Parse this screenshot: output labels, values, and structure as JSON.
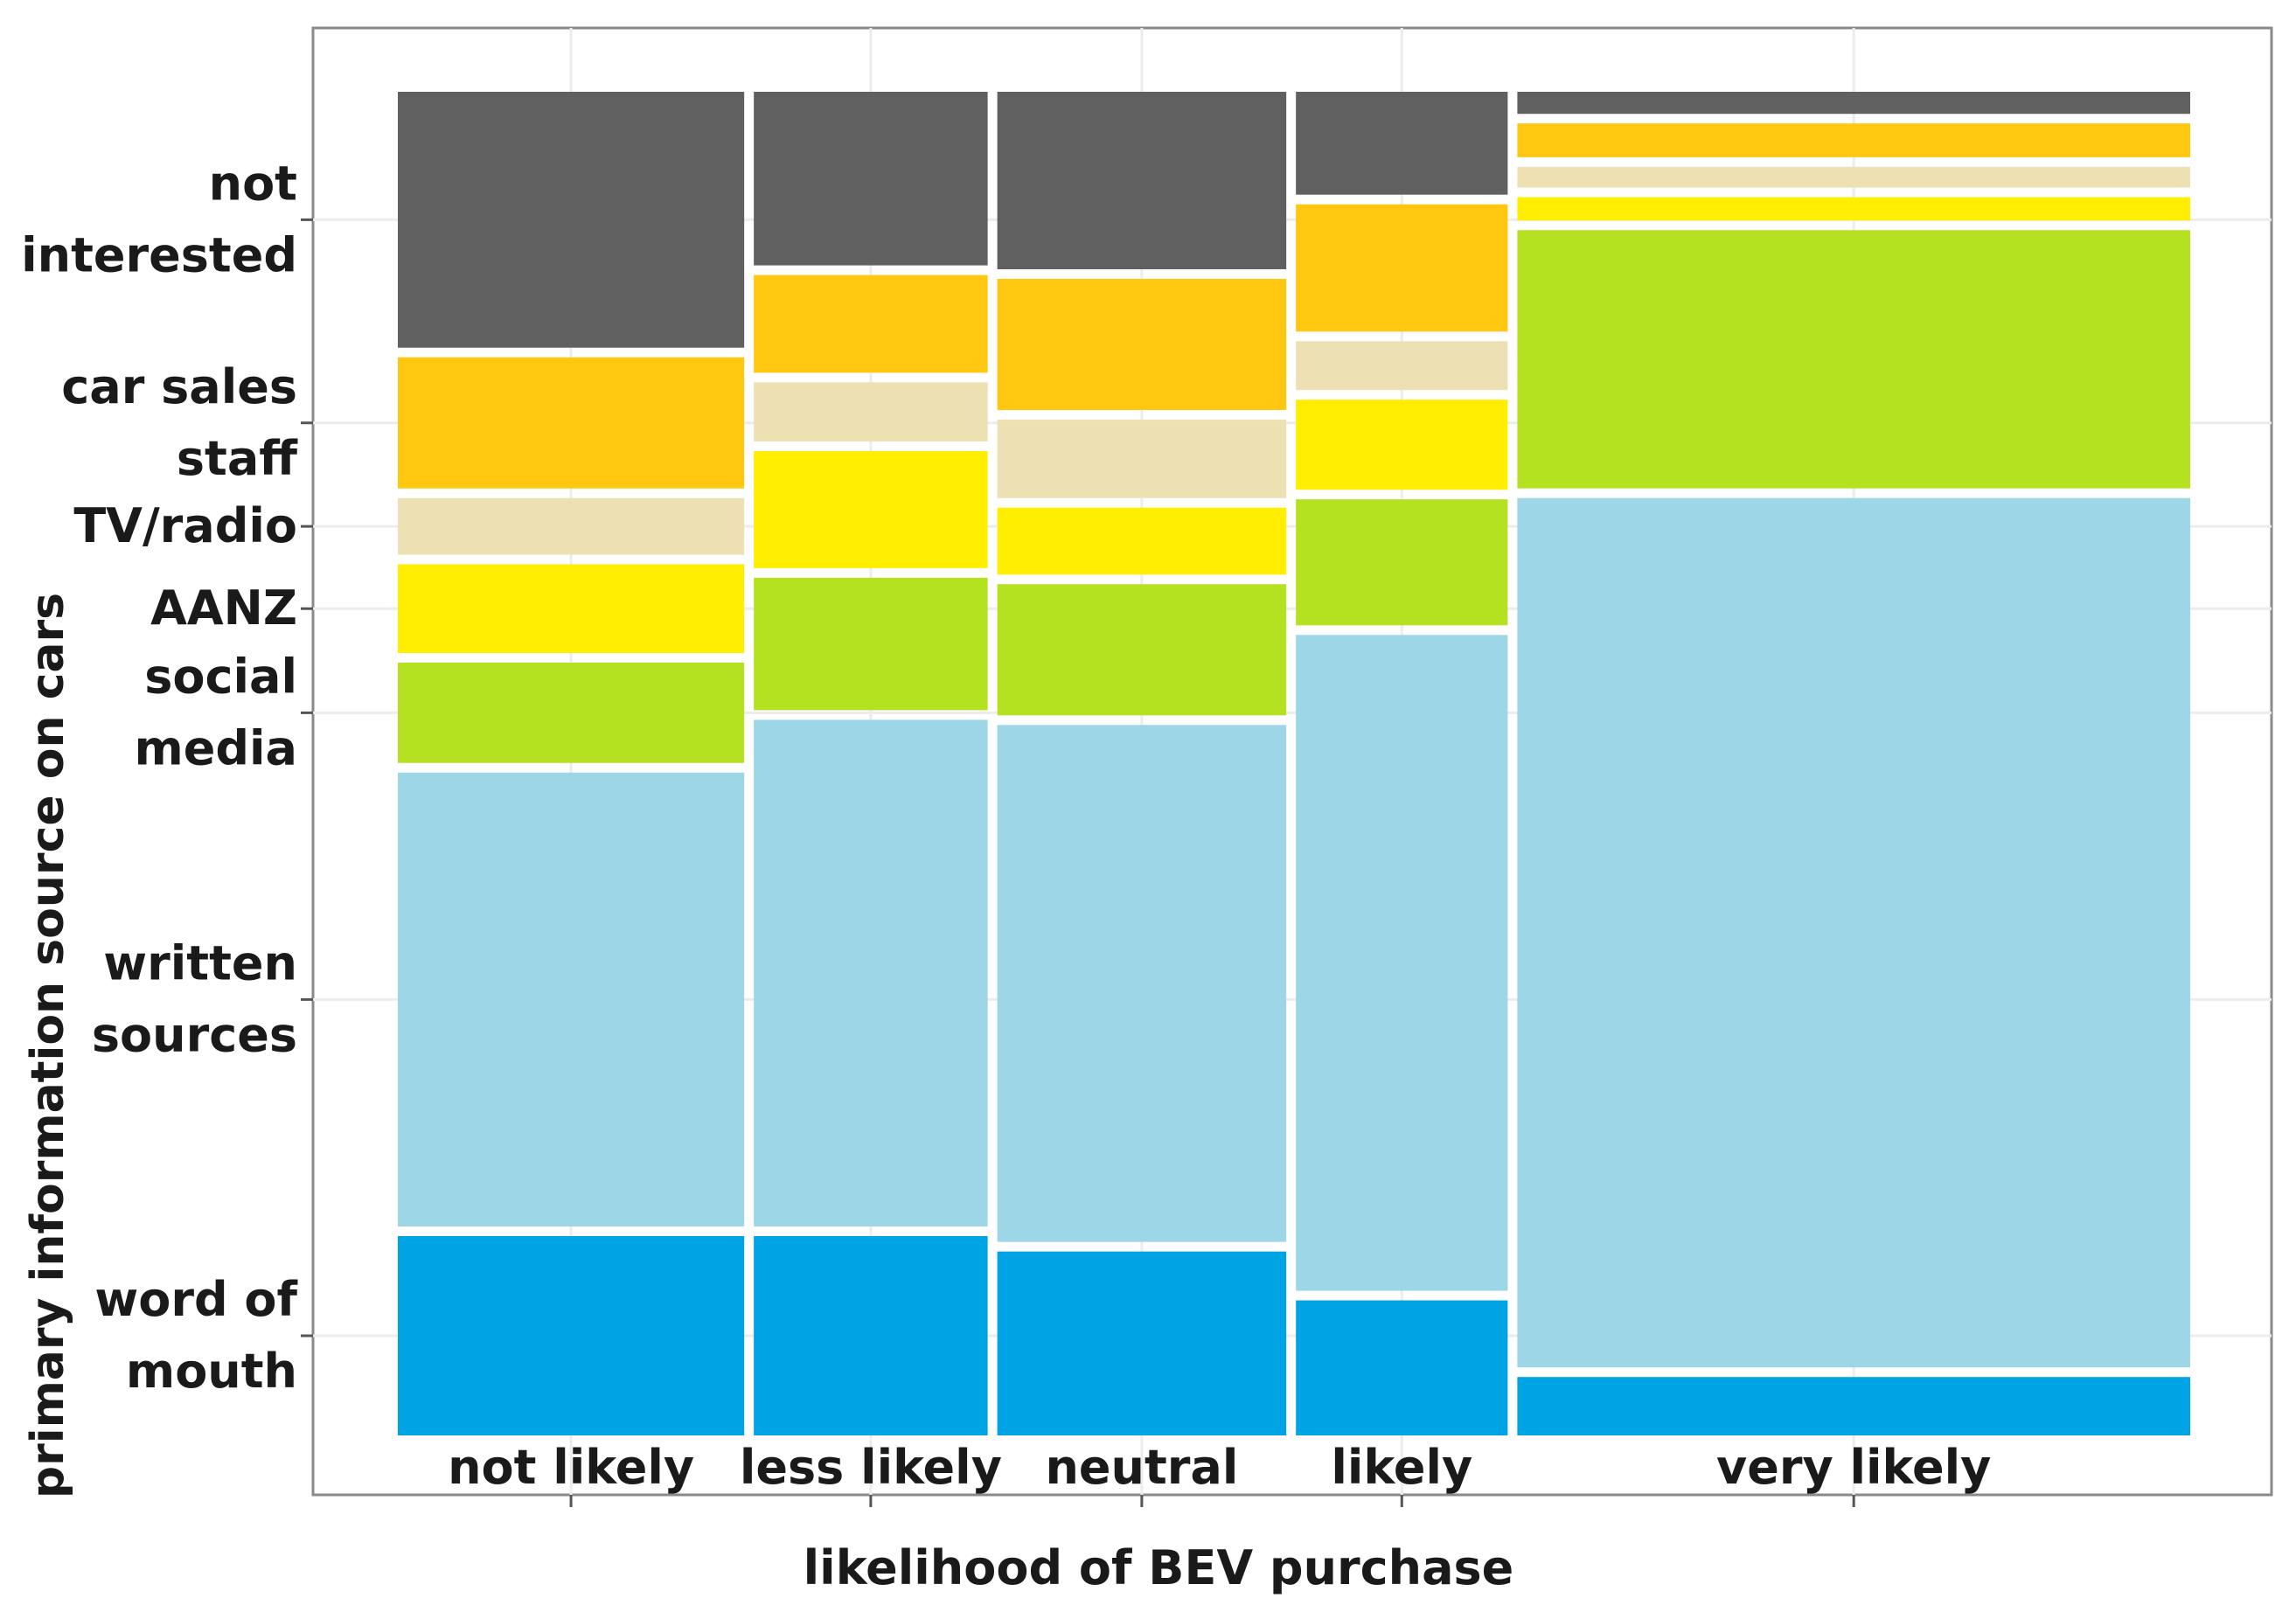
{
  "chart_data": {
    "type": "mosaic",
    "xlabel": "likelihood of BEV purchase",
    "ylabel": "primary information source on cars",
    "categories": [
      "not likely",
      "less likely",
      "neutral",
      "likely",
      "very likely"
    ],
    "category_share_pct": [
      15.7,
      10.6,
      13.1,
      9.6,
      30.5
    ],
    "segments": [
      {
        "name": "word of mouth",
        "label_lines": [
          "word of",
          "mouth"
        ],
        "color": "#00a3e4",
        "values": [
          15.5,
          15.5,
          14.3,
          10.5,
          4.5
        ]
      },
      {
        "name": "written sources",
        "label_lines": [
          "written",
          "sources"
        ],
        "color": "#9dd6e7",
        "values": [
          35.3,
          39.4,
          40.2,
          51.0,
          67.0
        ]
      },
      {
        "name": "social media",
        "label_lines": [
          "social",
          "media"
        ],
        "color": "#b5e220",
        "values": [
          7.8,
          10.3,
          10.2,
          9.8,
          19.9
        ]
      },
      {
        "name": "AANZ",
        "label_lines": [
          "AANZ"
        ],
        "color": "#ffee00",
        "values": [
          6.9,
          9.1,
          5.2,
          7.0,
          1.8
        ]
      },
      {
        "name": "TV/radio",
        "label_lines": [
          "TV/radio"
        ],
        "color": "#ede1b4",
        "values": [
          4.4,
          4.6,
          6.1,
          3.8,
          1.6
        ]
      },
      {
        "name": "car sales staff",
        "label_lines": [
          "car sales",
          "staff"
        ],
        "color": "#ffc710",
        "values": [
          10.2,
          7.6,
          10.2,
          9.9,
          2.6
        ]
      },
      {
        "name": "not interested",
        "label_lines": [
          "not",
          "interested"
        ],
        "color": "#606060",
        "values": [
          19.9,
          13.5,
          13.8,
          8.0,
          1.7
        ]
      }
    ]
  }
}
